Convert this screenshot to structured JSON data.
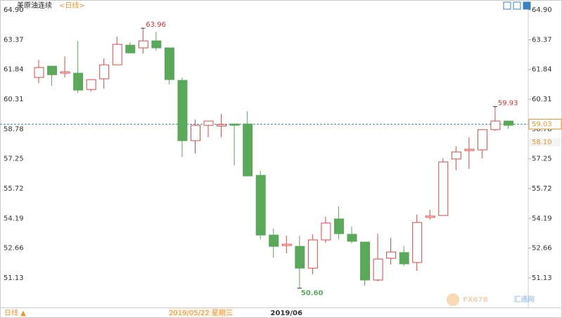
{
  "chart_data": {
    "type": "candlestick",
    "title": "美原油连续",
    "period": "<日线>",
    "period_button": "日线 ▲",
    "watermark": "FX678",
    "watermark_cn": "汇通网",
    "categories": [
      null,
      null,
      null,
      null,
      null,
      null,
      null,
      null,
      null,
      null,
      null,
      null,
      "2019/05/22 星期三",
      null,
      null,
      null,
      null,
      null,
      null,
      "2019/06",
      null,
      null,
      null,
      null,
      null,
      null,
      null,
      null,
      null,
      null,
      null,
      null,
      null,
      null,
      null,
      null,
      null
    ],
    "open": [
      61.43,
      62.01,
      61.65,
      61.65,
      60.81,
      61.36,
      62.08,
      63.09,
      62.95,
      63.31,
      62.95,
      61.28,
      58.18,
      58.97,
      58.93,
      59.04,
      59.04,
      56.4,
      53.33,
      52.79,
      52.75,
      51.63,
      53.08,
      54.16,
      53.37,
      52.97,
      51.02,
      52.14,
      52.43,
      51.92,
      54.24,
      54.34,
      57.24,
      57.67,
      57.71,
      58.75,
      59.19
    ],
    "high": [
      62.33,
      62.01,
      62.51,
      63.31,
      61.32,
      62.41,
      63.53,
      63.24,
      63.96,
      63.78,
      62.95,
      61.43,
      59.26,
      59.19,
      59.55,
      59.04,
      59.69,
      56.62,
      53.66,
      53.3,
      53.3,
      53.37,
      54.27,
      54.81,
      53.77,
      52.97,
      53.4,
      53.19,
      52.75,
      54.38,
      54.63,
      57.27,
      57.89,
      58.36,
      58.75,
      59.93,
      59.19
    ],
    "low": [
      61.14,
      61.0,
      61.43,
      60.63,
      60.71,
      60.85,
      62.08,
      62.69,
      62.66,
      62.8,
      61.07,
      57.34,
      57.52,
      58.36,
      58.36,
      56.91,
      56.37,
      53.11,
      52.17,
      52.39,
      50.6,
      51.31,
      52.93,
      53.11,
      52.9,
      50.73,
      50.95,
      51.81,
      51.74,
      51.49,
      54.13,
      54.34,
      56.66,
      56.73,
      57.27,
      58.68,
      58.79
    ],
    "close": [
      61.94,
      61.57,
      61.72,
      60.78,
      61.32,
      62.08,
      63.13,
      62.69,
      63.31,
      62.95,
      61.32,
      58.18,
      58.97,
      59.19,
      59.01,
      58.97,
      56.37,
      53.33,
      52.75,
      52.86,
      51.63,
      53.08,
      53.95,
      53.4,
      53.01,
      51.02,
      52.1,
      52.46,
      51.85,
      53.98,
      54.31,
      57.09,
      57.6,
      57.74,
      58.75,
      59.19,
      58.97
    ],
    "high_labels": [
      null,
      null,
      null,
      null,
      null,
      null,
      null,
      null,
      "63.96",
      null,
      null,
      null,
      null,
      null,
      null,
      null,
      null,
      null,
      null,
      null,
      null,
      null,
      null,
      null,
      null,
      null,
      null,
      null,
      null,
      null,
      null,
      null,
      null,
      null,
      null,
      "59.93",
      null
    ],
    "low_labels": [
      null,
      null,
      null,
      null,
      null,
      null,
      null,
      null,
      null,
      null,
      null,
      null,
      null,
      null,
      null,
      null,
      null,
      null,
      null,
      null,
      "50.60",
      null,
      null,
      null,
      null,
      null,
      null,
      null,
      null,
      null,
      null,
      null,
      null,
      null,
      null,
      null,
      null
    ],
    "up_color": "#e04545",
    "down_color": "#5aa85a",
    "label_up_color": "#d93030",
    "last_price": {
      "value": 59.03,
      "label": "59.03"
    },
    "ref_price": {
      "value": 58.1,
      "label": "58.10"
    },
    "price_color": "#f0932b",
    "last_line_color": "#3b9a9a",
    "ylim": [
      49.61,
      65.41
    ],
    "yticks": [
      {
        "value": 64.9,
        "label": "64.90"
      },
      63.37,
      61.84,
      60.31,
      58.78,
      57.25,
      55.72,
      54.19,
      52.66,
      51.13
    ]
  }
}
